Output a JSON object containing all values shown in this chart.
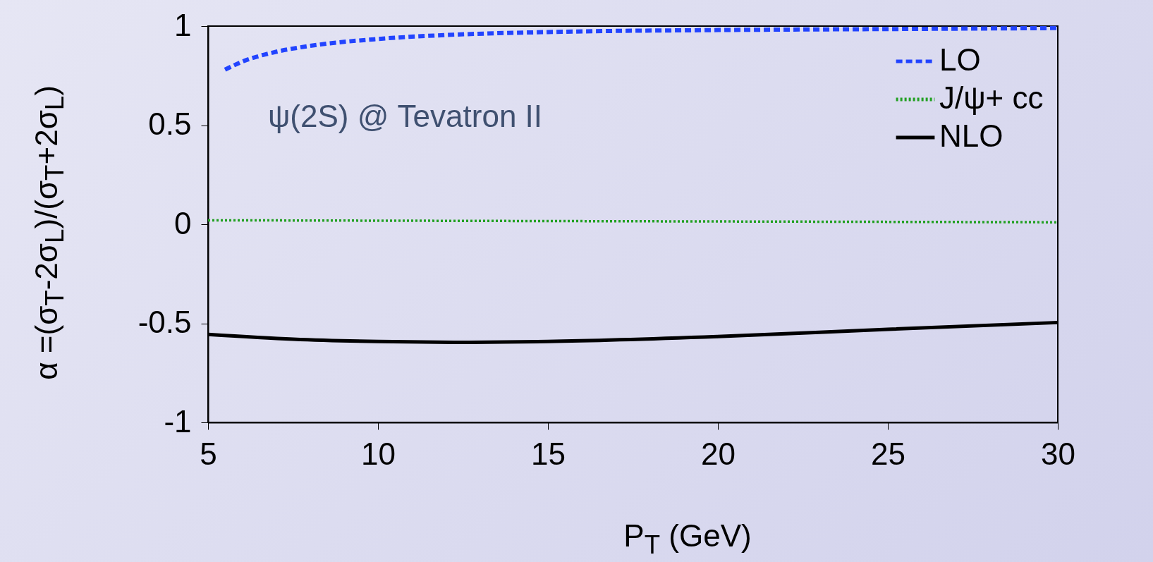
{
  "chart_data": {
    "type": "line",
    "xlabel": "P$_{T}$ (GeV)",
    "ylabel": "α =(σ$_{T}$-2σ$_{L}$)/(σ$_{T}$+2σ$_{L}$)",
    "annotations": [
      "ψ(2S) @ Tevatron II"
    ],
    "xlim": [
      5,
      30
    ],
    "ylim": [
      -1,
      1
    ],
    "xticks": [
      5,
      10,
      15,
      20,
      25,
      30
    ],
    "yticks": [
      -1,
      -0.5,
      0,
      0.5,
      1
    ],
    "legend": "top right",
    "marker": "none",
    "series": [
      {
        "name": "LO",
        "color": "#2244ff",
        "line_style": "dashed",
        "x": [
          5.5,
          6,
          7,
          8,
          10,
          12,
          15,
          20,
          25,
          30
        ],
        "values": [
          0.78,
          0.82,
          0.87,
          0.9,
          0.935,
          0.955,
          0.97,
          0.98,
          0.985,
          0.99
        ]
      },
      {
        "name": "J/ψ+ cc",
        "color": "#22a022",
        "line_style": "dotted",
        "x": [
          5,
          10,
          15,
          20,
          25,
          30
        ],
        "values": [
          0.02,
          0.018,
          0.016,
          0.014,
          0.012,
          0.01
        ]
      },
      {
        "name": "NLO",
        "color": "#000000",
        "line_style": "solid",
        "x": [
          5,
          7.5,
          10,
          12.5,
          15,
          20,
          25,
          30
        ],
        "values": [
          -0.556,
          -0.58,
          -0.592,
          -0.596,
          -0.592,
          -0.567,
          -0.53,
          -0.496
        ]
      }
    ]
  }
}
